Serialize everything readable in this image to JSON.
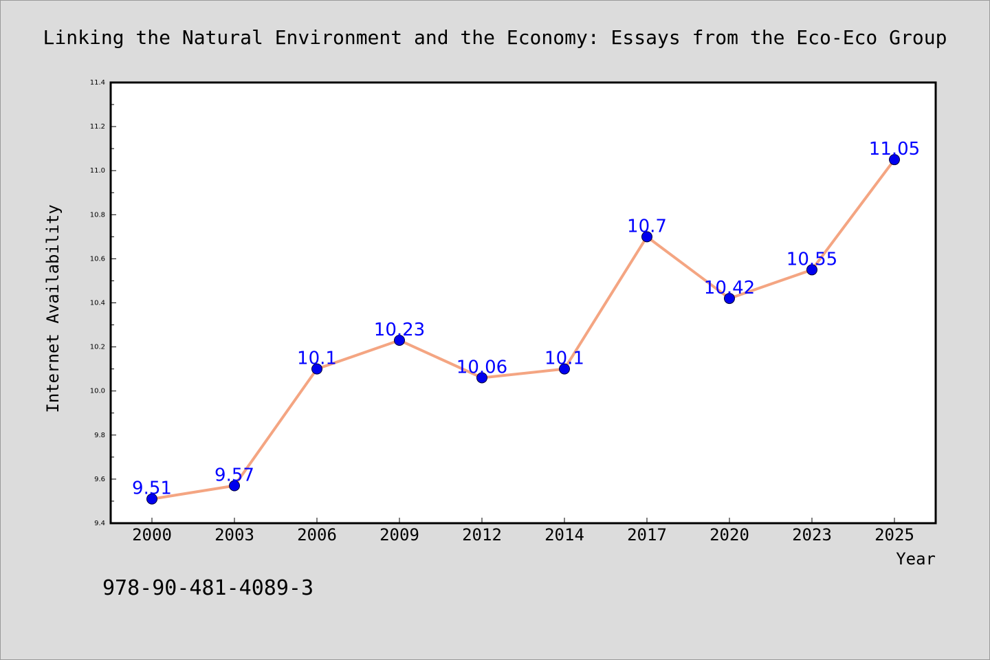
{
  "chart_data": {
    "type": "line",
    "title": "Linking the Natural Environment and the Economy: Essays from the Eco-Eco Group",
    "xlabel": "Year",
    "ylabel": "Internet Availability",
    "categories": [
      "2000",
      "2003",
      "2006",
      "2009",
      "2012",
      "2014",
      "2017",
      "2020",
      "2023",
      "2025"
    ],
    "values": [
      9.51,
      9.57,
      10.1,
      10.23,
      10.06,
      10.1,
      10.7,
      10.42,
      10.55,
      11.05
    ],
    "data_labels": [
      "9.51",
      "9.57",
      "10.1",
      "10.23",
      "10.06",
      "10.1",
      "10.7",
      "10.42",
      "10.55",
      "11.05"
    ],
    "ylim": [
      9.4,
      11.4
    ],
    "yticks": [
      "9.4",
      "9.6",
      "9.8",
      "10.0",
      "10.2",
      "10.4",
      "10.6",
      "10.8",
      "11.0",
      "11.2",
      "11.4"
    ],
    "grid": false,
    "legend": "none",
    "line_color": "#f4a582",
    "marker_color": "#0000ee",
    "label_color": "#0000ff",
    "background_color": "#dcdcdc",
    "plot_background_color": "#ffffff"
  },
  "footer": {
    "isbn": "978-90-481-4089-3"
  }
}
